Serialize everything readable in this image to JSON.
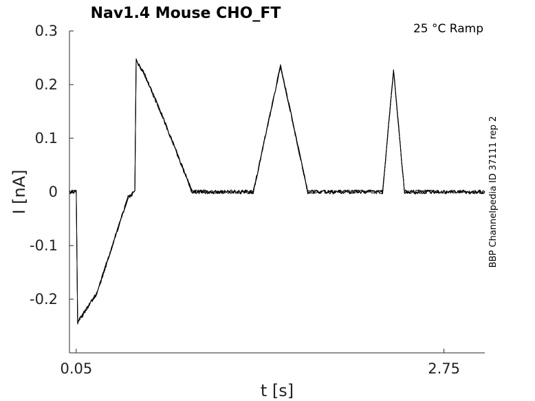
{
  "chart_data": {
    "type": "line",
    "title": "Nav1.4  Mouse  CHO_FT",
    "annotation": "25 °C  Ramp",
    "side_note": "BBP Channelpedia ID 37111 rep 2",
    "xlabel": "t [s]",
    "ylabel": "I [nA]",
    "xlim": [
      0.0,
      3.05
    ],
    "ylim": [
      -0.3,
      0.3
    ],
    "x_ticks": [
      {
        "value": 0.05,
        "label": "0.05"
      },
      {
        "value": 2.75,
        "label": "2.75"
      }
    ],
    "y_ticks": [
      {
        "value": 0.3,
        "label": "0.3"
      },
      {
        "value": 0.2,
        "label": "0.2"
      },
      {
        "value": 0.1,
        "label": "0.1"
      },
      {
        "value": 0.0,
        "label": "0"
      },
      {
        "value": -0.1,
        "label": "-0.1"
      },
      {
        "value": -0.2,
        "label": "-0.2"
      }
    ],
    "grid": false,
    "line_color": "#000000",
    "series": [
      {
        "x": [
          0.0,
          0.04,
          0.05,
          0.06,
          0.2,
          0.43,
          0.48,
          0.49,
          0.55,
          0.7,
          0.9,
          1.2,
          1.35,
          1.55,
          1.75,
          1.9,
          2.17,
          2.3,
          2.38,
          2.46,
          2.8,
          2.93,
          2.95,
          3.0,
          3.05
        ],
        "y": [
          0.0,
          0.0,
          0.0,
          -0.243,
          -0.19,
          -0.01,
          0.0,
          0.246,
          0.22,
          0.13,
          0.0,
          0.0,
          0.0,
          0.235,
          0.0,
          0.0,
          0.0,
          0.0,
          0.228,
          0.0,
          0.0,
          0.0,
          0.0,
          0.0,
          0.0
        ]
      }
    ]
  }
}
